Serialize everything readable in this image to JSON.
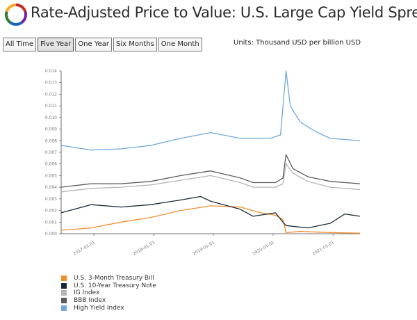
{
  "header": {
    "title": "Rate-Adjusted Price to Value: U.S. Large Cap Yield Spread",
    "units": "Units: Thousand USD per billion USD",
    "logo_colors": [
      "#c62828",
      "#7b1fa2",
      "#1565c0",
      "#2e7d32",
      "#f9a825"
    ]
  },
  "range_buttons": [
    {
      "label": "All Time",
      "active": false
    },
    {
      "label": "Five Year",
      "active": true
    },
    {
      "label": "One Year",
      "active": false
    },
    {
      "label": "Six Months",
      "active": false
    },
    {
      "label": "One Month",
      "active": false
    }
  ],
  "chart_data": {
    "type": "line",
    "x_axis": {
      "type": "date",
      "ticks": [
        "2017-01-01",
        "2018-01-01",
        "2019-01-01",
        "2020-01-01",
        "2021-01-01"
      ]
    },
    "y_axis": {
      "ticks": [
        "0.000",
        "0.001",
        "0.002",
        "0.003",
        "0.004",
        "0.005",
        "0.006",
        "0.007",
        "0.008",
        "0.009",
        "0.010",
        "0.011",
        "0.012",
        "0.013",
        "0.014"
      ],
      "ylim": [
        0,
        0.014
      ]
    },
    "xlim": [
      "2016-06-15",
      "2021-06-15"
    ],
    "grid": false,
    "legend_position": "bottom-left",
    "series": [
      {
        "name": "U.S. 3-Month Treasury Bill",
        "color": "#f28e2b",
        "points": [
          [
            "2016-06-15",
            0.0003
          ],
          [
            "2016-12-15",
            0.0005
          ],
          [
            "2017-06-15",
            0.001
          ],
          [
            "2017-12-15",
            0.0014
          ],
          [
            "2018-06-15",
            0.002
          ],
          [
            "2018-12-15",
            0.0024
          ],
          [
            "2019-06-15",
            0.0023
          ],
          [
            "2019-10-15",
            0.0018
          ],
          [
            "2020-01-15",
            0.0016
          ],
          [
            "2020-03-01",
            0.0012
          ],
          [
            "2020-03-20",
            0.0001
          ],
          [
            "2020-06-15",
            0.0002
          ],
          [
            "2020-12-15",
            0.0001
          ],
          [
            "2021-06-15",
            5e-05
          ]
        ]
      },
      {
        "name": "U.S. 10-Year Treasury Note",
        "color": "#1b2838",
        "points": [
          [
            "2016-06-15",
            0.0018
          ],
          [
            "2016-12-15",
            0.0025
          ],
          [
            "2017-06-15",
            0.0023
          ],
          [
            "2017-12-15",
            0.0025
          ],
          [
            "2018-06-15",
            0.0029
          ],
          [
            "2018-10-15",
            0.0032
          ],
          [
            "2018-12-15",
            0.0028
          ],
          [
            "2019-06-15",
            0.0021
          ],
          [
            "2019-09-01",
            0.0015
          ],
          [
            "2020-01-15",
            0.0018
          ],
          [
            "2020-03-01",
            0.001
          ],
          [
            "2020-03-20",
            0.0007
          ],
          [
            "2020-08-01",
            0.0005
          ],
          [
            "2020-12-15",
            0.0009
          ],
          [
            "2021-03-15",
            0.0017
          ],
          [
            "2021-06-15",
            0.0015
          ]
        ]
      },
      {
        "name": "IG Index",
        "color": "#b5b5b5",
        "points": [
          [
            "2016-06-15",
            0.0036
          ],
          [
            "2016-12-15",
            0.0039
          ],
          [
            "2017-06-15",
            0.004
          ],
          [
            "2017-12-15",
            0.0042
          ],
          [
            "2018-06-15",
            0.0046
          ],
          [
            "2018-12-15",
            0.005
          ],
          [
            "2019-06-15",
            0.0044
          ],
          [
            "2019-09-01",
            0.004
          ],
          [
            "2020-01-15",
            0.004
          ],
          [
            "2020-03-01",
            0.0043
          ],
          [
            "2020-03-20",
            0.006
          ],
          [
            "2020-05-01",
            0.0052
          ],
          [
            "2020-08-01",
            0.0045
          ],
          [
            "2020-12-15",
            0.004
          ],
          [
            "2021-06-15",
            0.0038
          ]
        ]
      },
      {
        "name": "BBB Index",
        "color": "#5a5a5a",
        "points": [
          [
            "2016-06-15",
            0.004
          ],
          [
            "2016-12-15",
            0.0043
          ],
          [
            "2017-06-15",
            0.0043
          ],
          [
            "2017-12-15",
            0.0045
          ],
          [
            "2018-06-15",
            0.005
          ],
          [
            "2018-12-15",
            0.0054
          ],
          [
            "2019-06-15",
            0.0048
          ],
          [
            "2019-09-01",
            0.0044
          ],
          [
            "2020-01-15",
            0.0044
          ],
          [
            "2020-03-01",
            0.0048
          ],
          [
            "2020-03-20",
            0.0068
          ],
          [
            "2020-05-01",
            0.0056
          ],
          [
            "2020-08-01",
            0.0049
          ],
          [
            "2020-12-15",
            0.0045
          ],
          [
            "2021-06-15",
            0.0043
          ]
        ]
      },
      {
        "name": "High Yield Index",
        "color": "#6fa8dc",
        "points": [
          [
            "2016-06-15",
            0.0076
          ],
          [
            "2016-12-15",
            0.0072
          ],
          [
            "2017-06-15",
            0.0073
          ],
          [
            "2017-12-15",
            0.0076
          ],
          [
            "2018-06-15",
            0.0082
          ],
          [
            "2018-12-15",
            0.0087
          ],
          [
            "2019-06-15",
            0.0082
          ],
          [
            "2019-12-15",
            0.0082
          ],
          [
            "2020-02-15",
            0.0085
          ],
          [
            "2020-03-20",
            0.014
          ],
          [
            "2020-04-15",
            0.011
          ],
          [
            "2020-06-15",
            0.0096
          ],
          [
            "2020-09-15",
            0.0088
          ],
          [
            "2020-12-15",
            0.0082
          ],
          [
            "2021-06-15",
            0.008
          ]
        ]
      }
    ]
  }
}
